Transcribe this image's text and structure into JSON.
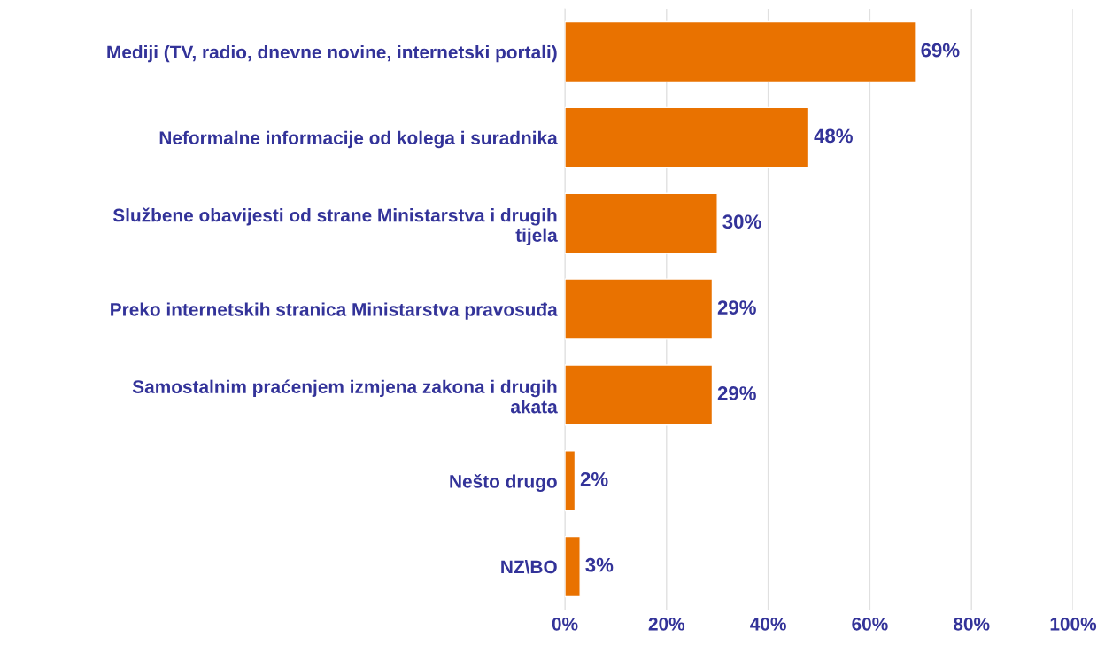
{
  "chart_data": {
    "type": "bar",
    "orientation": "horizontal",
    "categories": [
      "Mediji (TV, radio, dnevne novine, internetski portali)",
      "Neformalne informacije od kolega i suradnika",
      "Službene obavijesti od strane Ministarstva i drugih\ntijela",
      "Preko internetskih stranica Ministarstva pravosuđa",
      "Samostalnim praćenjem izmjena zakona i drugih\nakata",
      "Nešto drugo",
      "NZ\\BO"
    ],
    "values": [
      69,
      48,
      30,
      29,
      29,
      2,
      3
    ],
    "value_labels": [
      "69%",
      "48%",
      "30%",
      "29%",
      "29%",
      "2%",
      "3%"
    ],
    "color": "#e97200",
    "xlim": [
      0,
      100
    ],
    "xticks": [
      {
        "value": 0,
        "label": "0%"
      },
      {
        "value": 20,
        "label": "20%"
      },
      {
        "value": 40,
        "label": "40%"
      },
      {
        "value": 60,
        "label": "60%"
      },
      {
        "value": 80,
        "label": "80%"
      },
      {
        "value": 100,
        "label": "100%"
      }
    ],
    "grid": "x"
  }
}
